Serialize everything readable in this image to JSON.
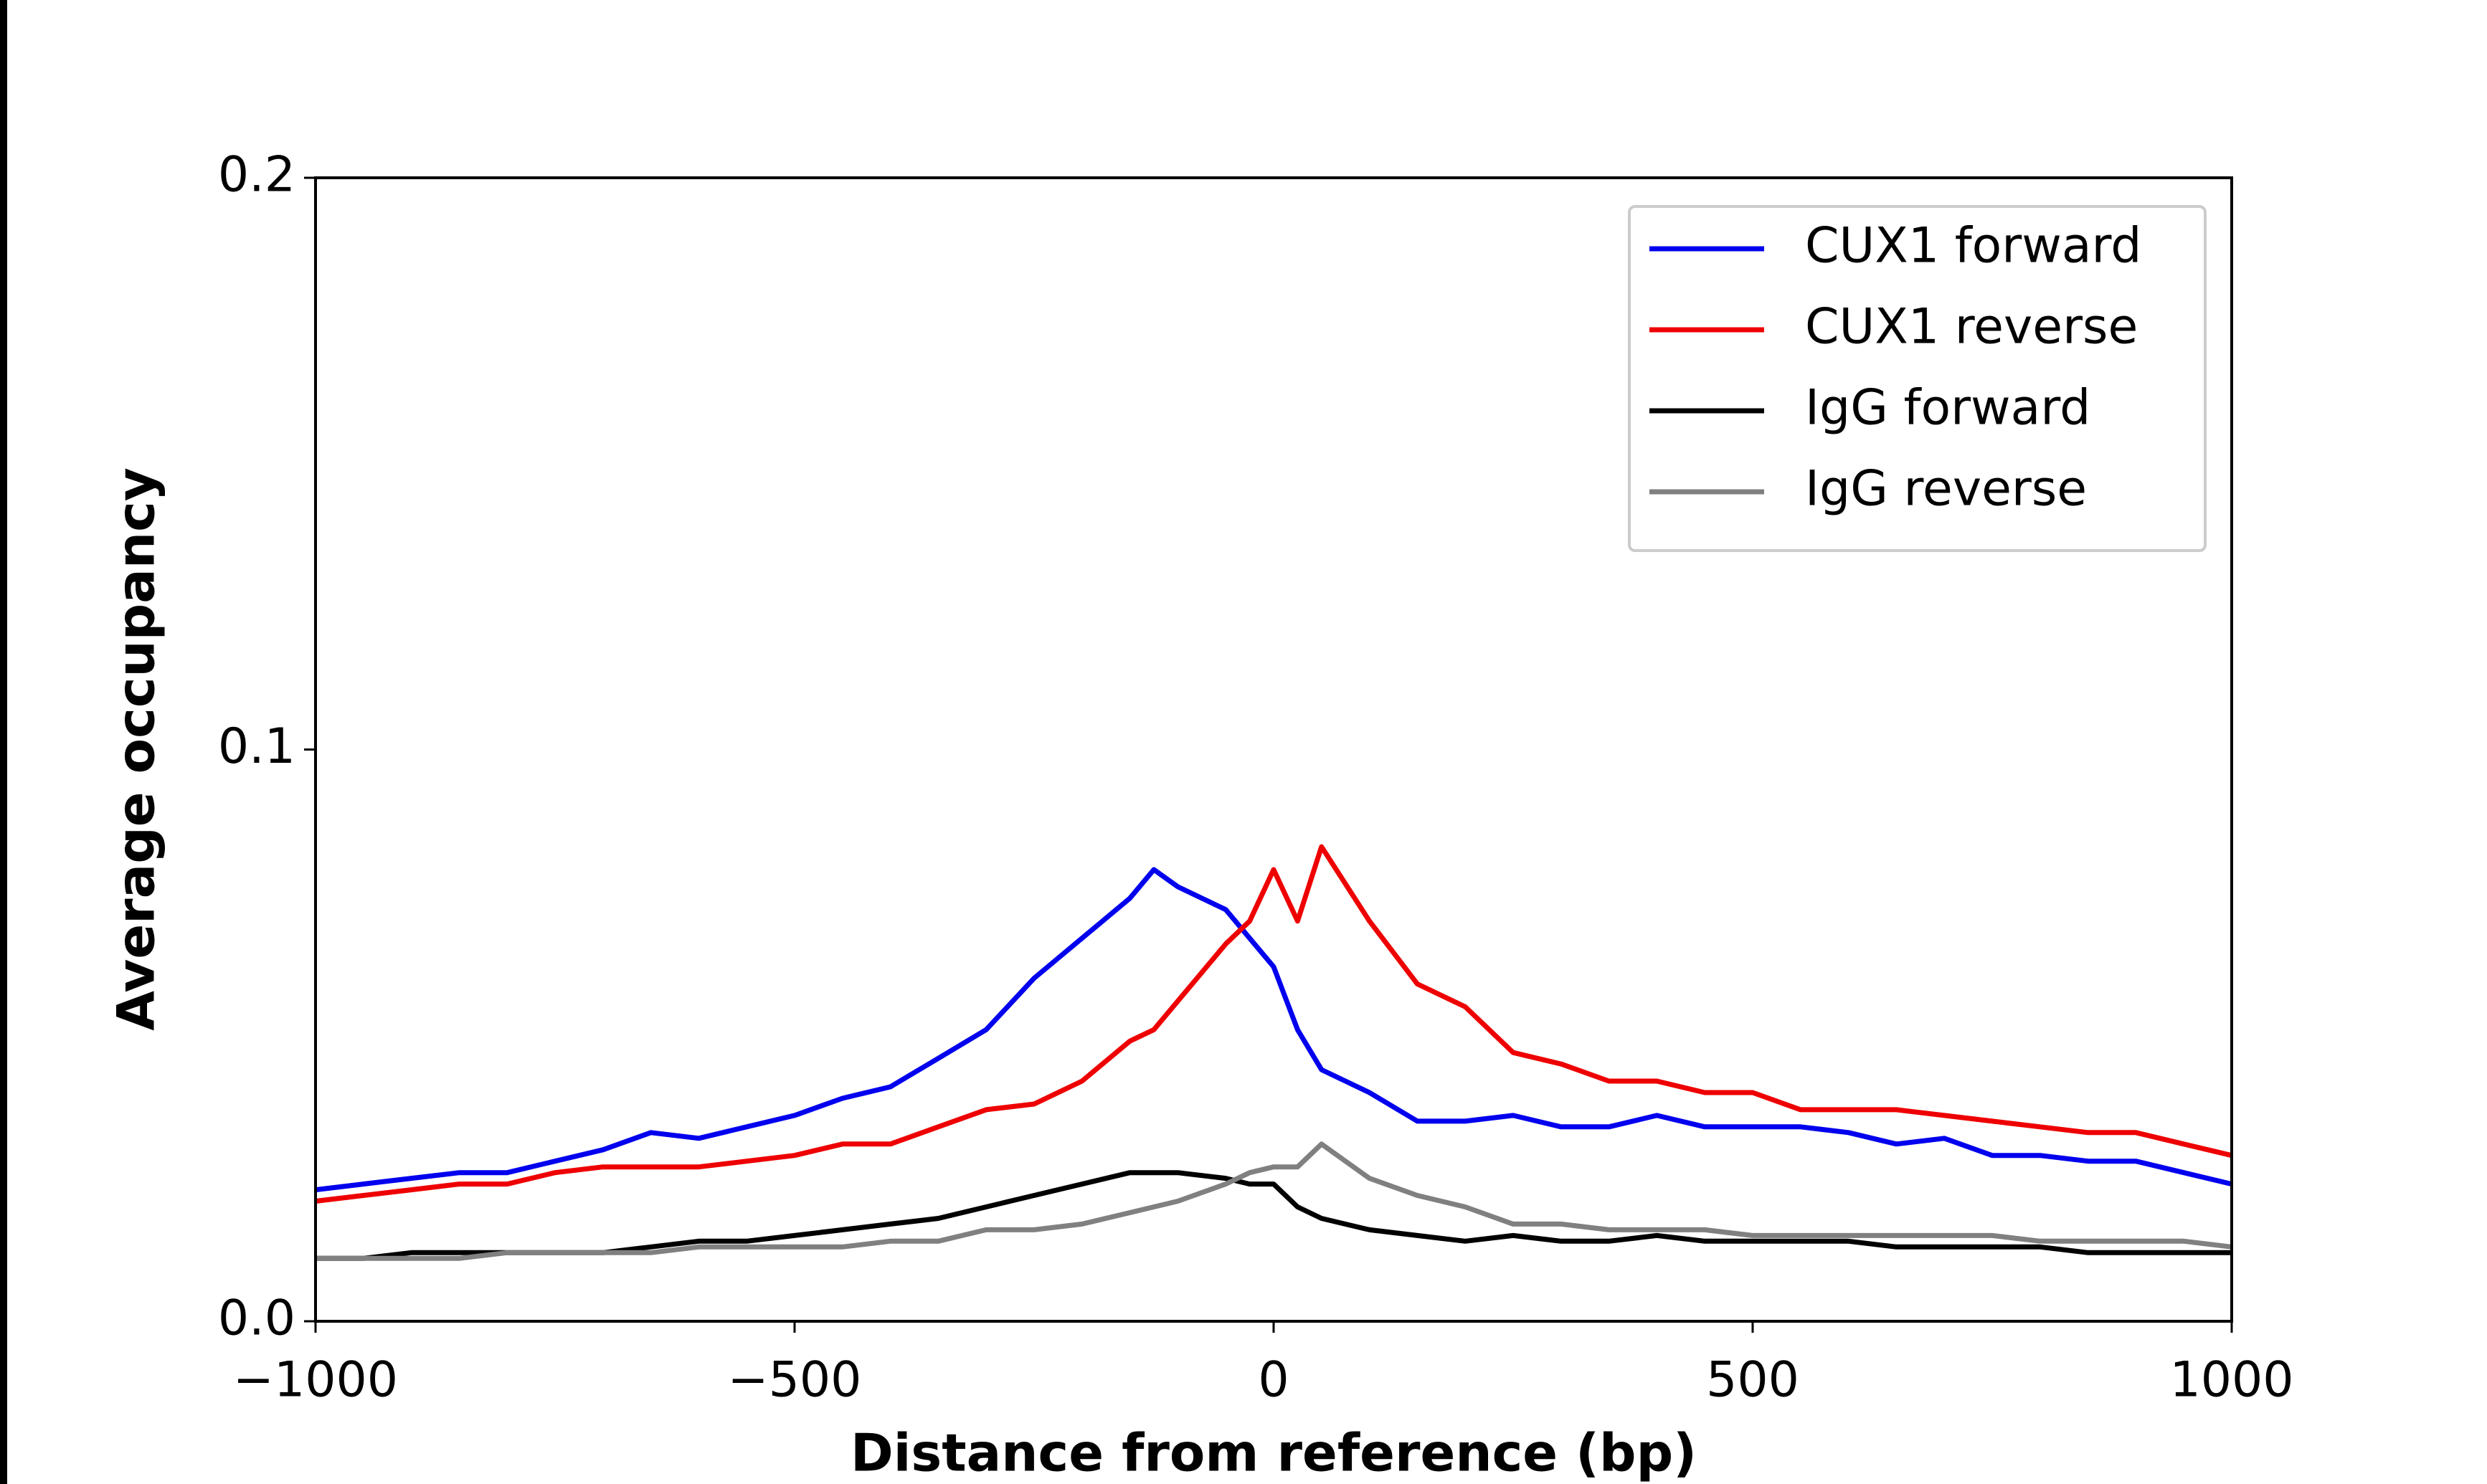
{
  "chart_data": {
    "type": "line",
    "xlabel": "Distance from reference (bp)",
    "ylabel": "Average occupancy",
    "x": [
      -1000,
      -950,
      -900,
      -850,
      -800,
      -750,
      -700,
      -650,
      -600,
      -550,
      -500,
      -450,
      -400,
      -350,
      -300,
      -250,
      -200,
      -150,
      -125,
      -100,
      -50,
      -25,
      0,
      25,
      50,
      100,
      150,
      200,
      250,
      300,
      350,
      400,
      450,
      500,
      550,
      600,
      650,
      700,
      750,
      800,
      850,
      900,
      950,
      1000
    ],
    "series": [
      {
        "name": "CUX1 forward",
        "color": "#0000ee",
        "values": [
          0.023,
          0.024,
          0.025,
          0.026,
          0.026,
          0.028,
          0.03,
          0.033,
          0.032,
          0.034,
          0.036,
          0.039,
          0.041,
          0.046,
          0.051,
          0.06,
          0.067,
          0.074,
          0.079,
          0.076,
          0.072,
          0.067,
          0.062,
          0.051,
          0.044,
          0.04,
          0.035,
          0.035,
          0.036,
          0.034,
          0.034,
          0.036,
          0.034,
          0.034,
          0.034,
          0.033,
          0.031,
          0.032,
          0.029,
          0.029,
          0.028,
          0.028,
          0.026,
          0.024
        ]
      },
      {
        "name": "CUX1 reverse",
        "color": "#ee0000",
        "values": [
          0.021,
          0.022,
          0.023,
          0.024,
          0.024,
          0.026,
          0.027,
          0.027,
          0.027,
          0.028,
          0.029,
          0.031,
          0.031,
          0.034,
          0.037,
          0.038,
          0.042,
          0.049,
          0.051,
          0.056,
          0.066,
          0.07,
          0.079,
          0.07,
          0.083,
          0.07,
          0.059,
          0.055,
          0.047,
          0.045,
          0.042,
          0.042,
          0.04,
          0.04,
          0.037,
          0.037,
          0.037,
          0.036,
          0.035,
          0.034,
          0.033,
          0.033,
          0.031,
          0.029
        ]
      },
      {
        "name": "IgG forward",
        "color": "#000000",
        "values": [
          0.011,
          0.011,
          0.012,
          0.012,
          0.012,
          0.012,
          0.012,
          0.013,
          0.014,
          0.014,
          0.015,
          0.016,
          0.017,
          0.018,
          0.02,
          0.022,
          0.024,
          0.026,
          0.026,
          0.026,
          0.025,
          0.024,
          0.024,
          0.02,
          0.018,
          0.016,
          0.015,
          0.014,
          0.015,
          0.014,
          0.014,
          0.015,
          0.014,
          0.014,
          0.014,
          0.014,
          0.013,
          0.013,
          0.013,
          0.013,
          0.012,
          0.012,
          0.012,
          0.012
        ]
      },
      {
        "name": "IgG reverse",
        "color": "#808080",
        "values": [
          0.011,
          0.011,
          0.011,
          0.011,
          0.012,
          0.012,
          0.012,
          0.012,
          0.013,
          0.013,
          0.013,
          0.013,
          0.014,
          0.014,
          0.016,
          0.016,
          0.017,
          0.019,
          0.02,
          0.021,
          0.024,
          0.026,
          0.027,
          0.027,
          0.031,
          0.025,
          0.022,
          0.02,
          0.017,
          0.017,
          0.016,
          0.016,
          0.016,
          0.015,
          0.015,
          0.015,
          0.015,
          0.015,
          0.015,
          0.014,
          0.014,
          0.014,
          0.014,
          0.013
        ]
      }
    ],
    "xlim": [
      -1000,
      1000
    ],
    "xticks": [
      {
        "value": -1000,
        "label": "−1000"
      },
      {
        "value": -500,
        "label": "−500"
      },
      0,
      500,
      1000
    ],
    "ylim": [
      0,
      0.2
    ],
    "yticks": [
      {
        "value": 0,
        "label": "0.0"
      },
      0.1,
      0.2
    ],
    "legend": "upper right"
  }
}
